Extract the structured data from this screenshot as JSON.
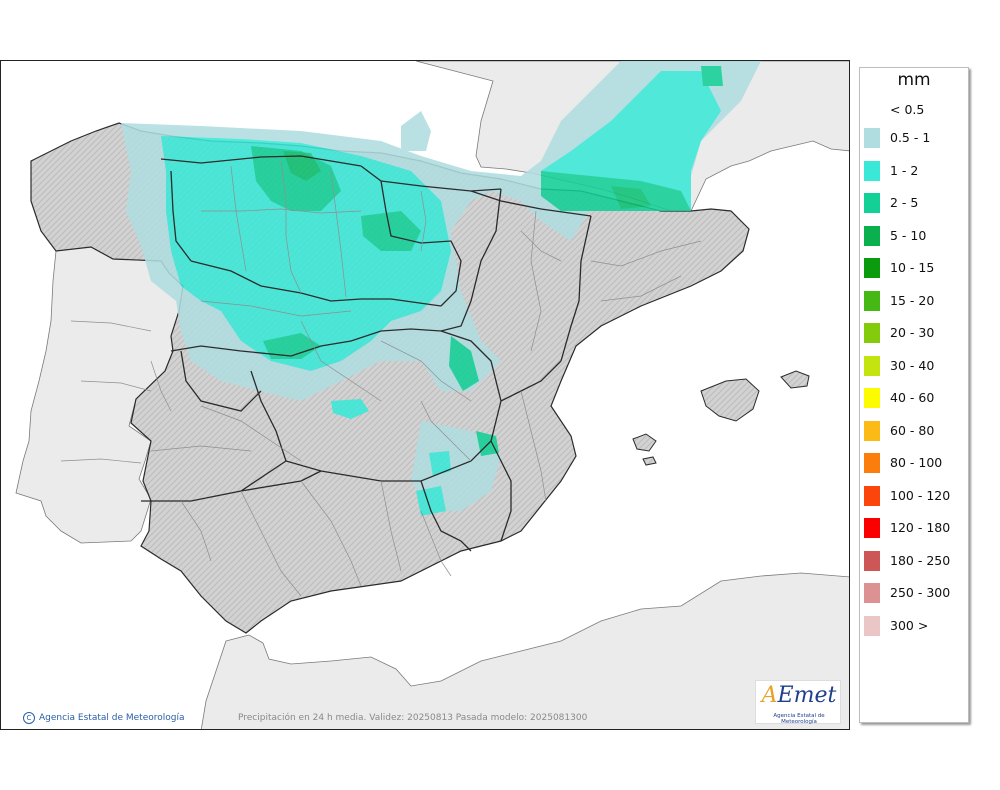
{
  "map": {
    "caption": "Precipitación en 24 h media. Validez: 20250813 Pasada modelo: 2025081300",
    "credit": "Agencia Estatal de Meteorología",
    "credit_icon": "copyright-icon",
    "logo_text_a": "A",
    "logo_text_b": "Emet",
    "logo_subtitle": "Agencia Estatal de Meteorología",
    "colors": {
      "sea": "#ffffff",
      "land_spain": "#d9d9d9",
      "land_other": "#ebebeb",
      "border": "#2b2b2b",
      "province_border": "#8f8f8f"
    }
  },
  "legend": {
    "unit": "mm",
    "lowest_label": "< 0.5",
    "items": [
      {
        "label": "0.5 - 1",
        "color": "#b0dde0"
      },
      {
        "label": "1 - 2",
        "color": "#3ae8d7"
      },
      {
        "label": "2 - 5",
        "color": "#12d096"
      },
      {
        "label": "5 - 10",
        "color": "#0ab04e"
      },
      {
        "label": "10 - 15",
        "color": "#0a9b0f"
      },
      {
        "label": "15 - 20",
        "color": "#46b816"
      },
      {
        "label": "20 - 30",
        "color": "#84cb0e"
      },
      {
        "label": "30 - 40",
        "color": "#c4e40f"
      },
      {
        "label": "40 - 60",
        "color": "#fdfb00"
      },
      {
        "label": "60 - 80",
        "color": "#fbba16"
      },
      {
        "label": "80 - 100",
        "color": "#fb7d0b"
      },
      {
        "label": "100 - 120",
        "color": "#fb450c"
      },
      {
        "label": "120 - 180",
        "color": "#fb0000"
      },
      {
        "label": "180 - 250",
        "color": "#cd5757"
      },
      {
        "label": "250 - 300",
        "color": "#dc9292"
      },
      {
        "label": "300 >",
        "color": "#ebc6c6"
      }
    ]
  }
}
